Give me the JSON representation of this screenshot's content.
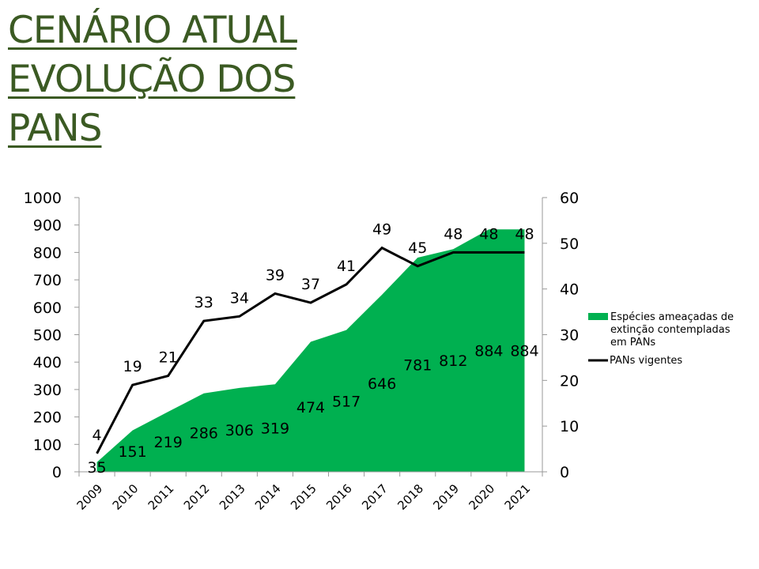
{
  "title_lines": [
    "CENÁRIO ATUAL",
    "EVOLUÇÃO DOS",
    "PANS"
  ],
  "chart_data": {
    "type": "area+line",
    "categories": [
      "2009",
      "2010",
      "2011",
      "2012",
      "2013",
      "2014",
      "2015",
      "2016",
      "2017",
      "2018",
      "2019",
      "2020",
      "2021"
    ],
    "series": [
      {
        "name": "Espécies ameaçadas de extinção contempladas em PANs",
        "type": "area",
        "axis": "left",
        "color": "#00b050",
        "values": [
          35,
          151,
          219,
          286,
          306,
          319,
          474,
          517,
          646,
          781,
          812,
          884,
          884
        ]
      },
      {
        "name": "PANs vigentes",
        "type": "line",
        "axis": "right",
        "color": "#000000",
        "values": [
          4,
          19,
          21,
          33,
          34,
          39,
          37,
          41,
          49,
          45,
          48,
          48,
          48
        ]
      }
    ],
    "left_axis": {
      "ylim": [
        0,
        1000
      ],
      "ticks": [
        0,
        100,
        200,
        300,
        400,
        500,
        600,
        700,
        800,
        900,
        1000
      ]
    },
    "right_axis": {
      "ylim": [
        0,
        60
      ],
      "ticks": [
        0,
        10,
        20,
        30,
        40,
        50,
        60
      ]
    },
    "legend_lines": [
      [
        "Espécies ameaçadas de",
        "extinção contempladas",
        "em PANs"
      ],
      [
        "PANs vigentes"
      ]
    ],
    "legend": "right",
    "grid": false
  }
}
